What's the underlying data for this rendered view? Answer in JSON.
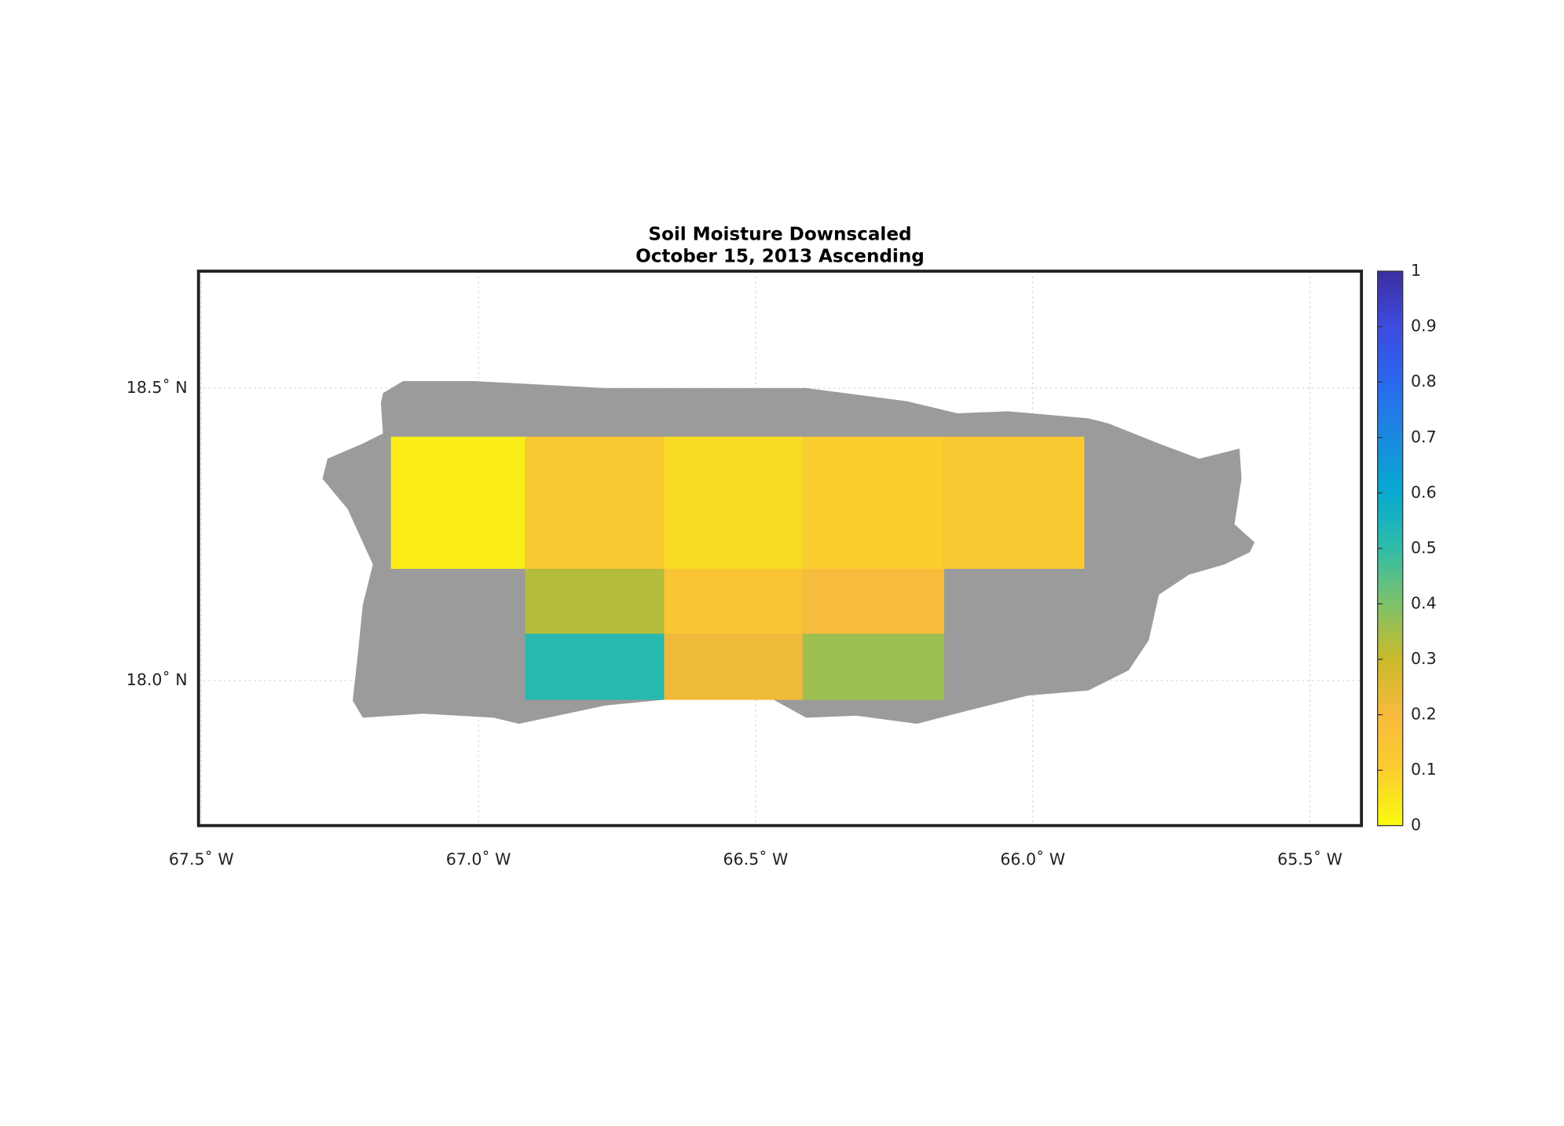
{
  "chart_data": {
    "type": "map",
    "title": "Soil Moisture Downscaled",
    "subtitle": "October 15, 2013 Ascending",
    "xlim": [
      -67.505,
      -65.407
    ],
    "ylim": [
      17.752,
      18.7
    ],
    "xticks": [
      {
        "value": -67.5,
        "label": "67.5˚ W"
      },
      {
        "value": -67.0,
        "label": "67.0˚ W"
      },
      {
        "value": -66.5,
        "label": "66.5˚ W"
      },
      {
        "value": -66.0,
        "label": "66.0˚ W"
      },
      {
        "value": -65.5,
        "label": "65.5˚ W"
      }
    ],
    "yticks": [
      {
        "value": 18.0,
        "label": "18.0˚ N"
      },
      {
        "value": 18.5,
        "label": "18.5˚ N"
      }
    ],
    "grid": true,
    "land_color": "#9b9b9b",
    "clim": [
      0,
      1
    ],
    "cticks": [
      0,
      0.1,
      0.2,
      0.3,
      0.4,
      0.5,
      0.6,
      0.7,
      0.8,
      0.9,
      1
    ],
    "colormap": [
      "#f9fb0e",
      "#fbcd2e",
      "#f8ba3d",
      "#cbba2a",
      "#7ec26a",
      "#2fbca8",
      "#06a9d0",
      "#1a8ae0",
      "#2a68ee",
      "#3d4be0",
      "#3c2ea0"
    ],
    "tiles": [
      {
        "lon": [
          -67.158,
          -66.916
        ],
        "lat": [
          18.191,
          18.417
        ],
        "value": 0.03
      },
      {
        "lon": [
          -66.916,
          -66.665
        ],
        "lat": [
          18.191,
          18.417
        ],
        "value": 0.12
      },
      {
        "lon": [
          -66.665,
          -66.415
        ],
        "lat": [
          18.191,
          18.417
        ],
        "value": 0.07
      },
      {
        "lon": [
          -66.415,
          -66.16
        ],
        "lat": [
          18.191,
          18.417
        ],
        "value": 0.1
      },
      {
        "lon": [
          -66.16,
          -65.907
        ],
        "lat": [
          18.191,
          18.417
        ],
        "value": 0.12
      },
      {
        "lon": [
          -66.916,
          -66.665
        ],
        "lat": [
          18.08,
          18.191
        ],
        "value": 0.33
      },
      {
        "lon": [
          -66.916,
          -66.665
        ],
        "lat": [
          17.967,
          18.08
        ],
        "value": 0.52
      },
      {
        "lon": [
          -66.665,
          -66.415
        ],
        "lat": [
          18.08,
          18.191
        ],
        "value": 0.14
      },
      {
        "lon": [
          -66.665,
          -66.415
        ],
        "lat": [
          17.967,
          18.08
        ],
        "value": 0.22
      },
      {
        "lon": [
          -66.415,
          -66.16
        ],
        "lat": [
          18.08,
          18.191
        ],
        "value": 0.19
      },
      {
        "lon": [
          -66.415,
          -66.16
        ],
        "lat": [
          17.967,
          18.08
        ],
        "value": 0.36
      }
    ]
  }
}
